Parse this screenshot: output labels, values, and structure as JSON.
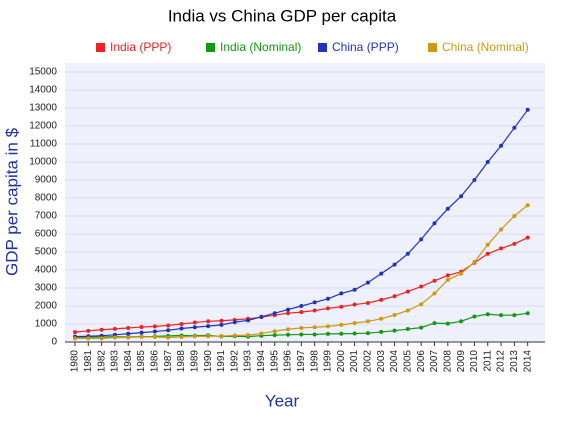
{
  "chart_data": {
    "type": "line",
    "title": "India vs China GDP per capita",
    "x_label": "Year",
    "y_label": "GDP per capita in $",
    "x": [
      1980,
      1981,
      1982,
      1983,
      1984,
      1985,
      1986,
      1987,
      1988,
      1989,
      1990,
      1991,
      1992,
      1993,
      1994,
      1995,
      1996,
      1997,
      1998,
      1999,
      2000,
      2001,
      2002,
      2003,
      2004,
      2005,
      2006,
      2007,
      2008,
      2009,
      2010,
      2011,
      2012,
      2013,
      2014
    ],
    "xlim": [
      1979.25,
      2015.3
    ],
    "ylim": [
      0,
      15500
    ],
    "yticks": [
      0,
      1000,
      2000,
      3000,
      4000,
      5000,
      6000,
      7000,
      8000,
      9000,
      10000,
      11000,
      12000,
      13000,
      14000,
      15000
    ],
    "grid": true,
    "series": [
      {
        "name": "India (PPP)",
        "color": "#ee2222",
        "values": [
          550,
          620,
          680,
          730,
          780,
          830,
          870,
          920,
          1000,
          1080,
          1150,
          1180,
          1230,
          1290,
          1380,
          1490,
          1600,
          1660,
          1750,
          1870,
          1960,
          2080,
          2170,
          2340,
          2540,
          2800,
          3080,
          3400,
          3700,
          3900,
          4400,
          4900,
          5200,
          5450,
          5800
        ]
      },
      {
        "name": "India (Nominal)",
        "color": "#119911",
        "values": [
          270,
          270,
          280,
          290,
          280,
          300,
          310,
          340,
          360,
          350,
          370,
          310,
          320,
          300,
          350,
          380,
          400,
          420,
          420,
          450,
          460,
          470,
          490,
          560,
          630,
          720,
          800,
          1050,
          1020,
          1150,
          1420,
          1540,
          1490,
          1490,
          1600
        ]
      },
      {
        "name": "China (PPP)",
        "color": "#2233bb",
        "values": [
          300,
          320,
          350,
          400,
          460,
          520,
          580,
          650,
          750,
          820,
          880,
          950,
          1100,
          1200,
          1400,
          1600,
          1800,
          2000,
          2200,
          2400,
          2700,
          2900,
          3300,
          3800,
          4300,
          4900,
          5700,
          6600,
          7400,
          8100,
          9000,
          10000,
          10900,
          11900,
          12900
        ]
      },
      {
        "name": "China (Nominal)",
        "color": "#cc9911",
        "values": [
          200,
          200,
          200,
          250,
          250,
          290,
          280,
          250,
          280,
          310,
          320,
          330,
          360,
          380,
          470,
          600,
          710,
          780,
          820,
          870,
          950,
          1050,
          1150,
          1290,
          1500,
          1750,
          2100,
          2700,
          3450,
          3800,
          4450,
          5400,
          6250,
          7000,
          7600
        ]
      }
    ]
  }
}
